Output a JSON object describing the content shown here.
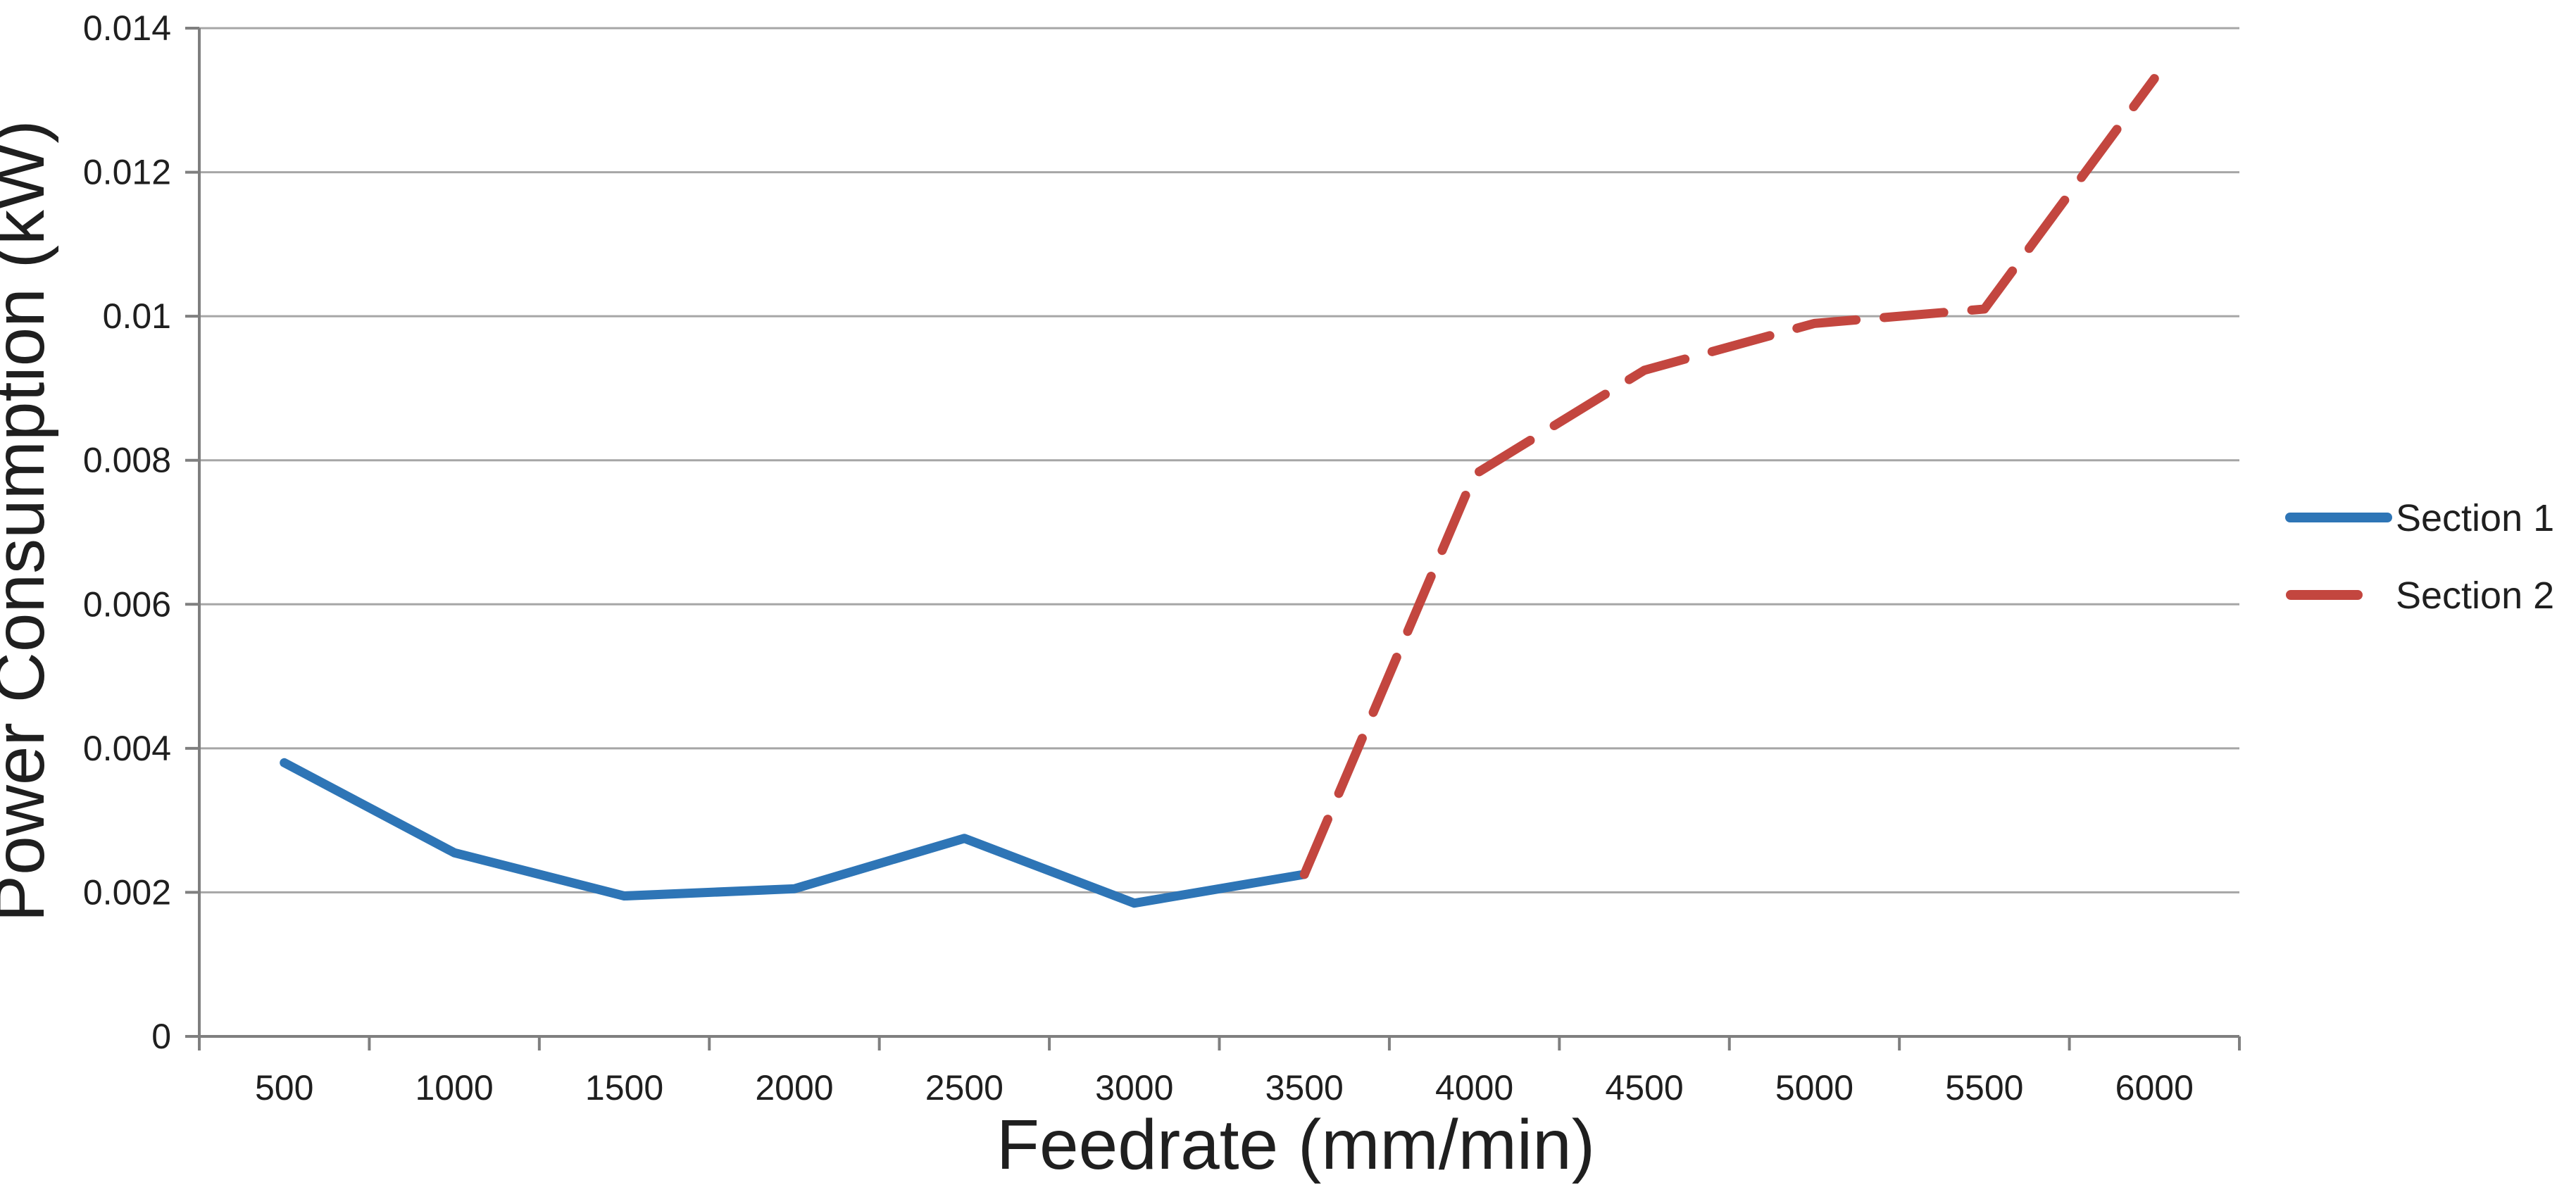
{
  "chart_data": {
    "type": "line",
    "title": "",
    "xlabel": "Feedrate (mm/min)",
    "ylabel": "Power Consumption (kW)",
    "x_ticks": [
      500,
      1000,
      1500,
      2000,
      2500,
      3000,
      3500,
      4000,
      4500,
      5000,
      5500,
      6000
    ],
    "y_ticks": [
      0,
      0.002,
      0.004,
      0.006,
      0.008,
      0.01,
      0.012,
      0.014
    ],
    "y_tick_labels": [
      "0",
      "0.002",
      "0.004",
      "0.006",
      "0.008",
      "0.01",
      "0.012",
      "0.014"
    ],
    "ylim": [
      0,
      0.014
    ],
    "grid": "horizontal",
    "grid_color": "#A6A6A6",
    "axis_color": "#7F7F7F",
    "legend_position": "right",
    "series": [
      {
        "name": "Section 1",
        "style": "solid",
        "color": "#2E75B6",
        "x": [
          500,
          1000,
          1500,
          2000,
          2500,
          3000,
          3500
        ],
        "values": [
          0.0038,
          0.00255,
          0.00195,
          0.00205,
          0.00275,
          0.00185,
          0.00225
        ]
      },
      {
        "name": "Section 2",
        "style": "dashed",
        "color": "#C3463F",
        "x": [
          3500,
          4000,
          4500,
          5000,
          5500,
          6000
        ],
        "values": [
          0.00225,
          0.0078,
          0.00925,
          0.0099,
          0.0101,
          0.0133
        ]
      }
    ]
  }
}
